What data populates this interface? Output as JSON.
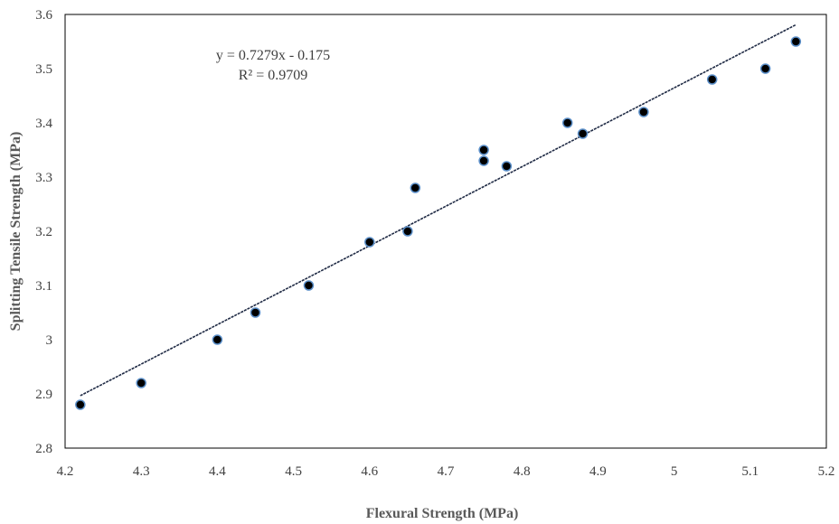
{
  "chart_data": {
    "type": "scatter",
    "xlabel": "Flexural Strength (MPa)",
    "ylabel": "Splitting Tensile Strength (MPa)",
    "xlim": [
      4.2,
      5.2
    ],
    "ylim": [
      2.8,
      3.6
    ],
    "x_ticks": [
      "4.2",
      "4.3",
      "4.4",
      "4.5",
      "4.6",
      "4.7",
      "4.8",
      "4.9",
      "5",
      "5.1",
      "5.2"
    ],
    "y_ticks": [
      "2.8",
      "2.9",
      "3",
      "3.1",
      "3.2",
      "3.3",
      "3.4",
      "3.5",
      "3.6"
    ],
    "grid": false,
    "legend": "none",
    "series": [
      {
        "x": [
          4.22,
          4.3,
          4.4,
          4.45,
          4.52,
          4.6,
          4.65,
          4.66,
          4.75,
          4.75,
          4.78,
          4.86,
          4.88,
          4.96,
          5.05,
          5.12,
          5.16
        ],
        "y": [
          2.88,
          2.92,
          3.0,
          3.05,
          3.1,
          3.18,
          3.2,
          3.28,
          3.35,
          3.33,
          3.32,
          3.4,
          3.38,
          3.42,
          3.48,
          3.5,
          3.55
        ],
        "marker_fill": "#000000",
        "marker_edge": "#5b8fc9"
      }
    ],
    "trendline": {
      "type": "linear",
      "slope": 0.7279,
      "intercept": -0.175,
      "x_range": [
        4.22,
        5.16
      ],
      "color": "#1f2a44"
    },
    "annotations": {
      "equation": "y = 0.7279x - 0.175",
      "r_squared": "R² = 0.9709"
    }
  }
}
